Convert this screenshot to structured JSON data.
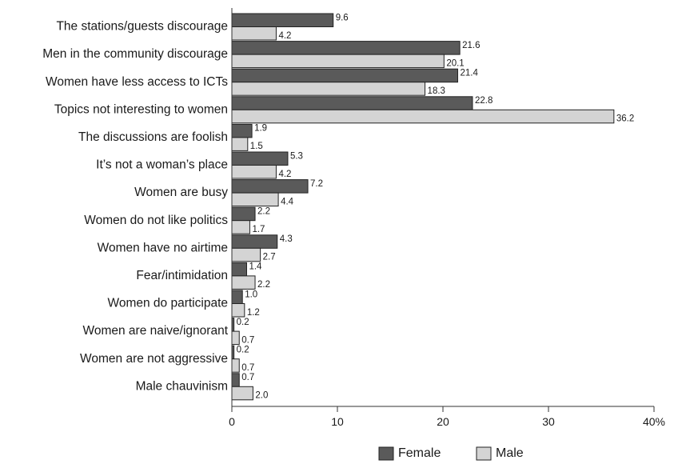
{
  "chart_data": {
    "type": "bar",
    "orientation": "horizontal",
    "categories": [
      "The stations/guests discourage",
      "Men in the community discourage",
      "Women have less access to ICTs",
      "Topics not interesting to women",
      "The discussions are foolish",
      "It’s not a woman’s place",
      "Women are busy",
      "Women do not like politics",
      "Women have no airtime",
      "Fear/intimidation",
      "Women do participate",
      "Women are naive/ignorant",
      "Women are not aggressive",
      "Male chauvinism"
    ],
    "series": [
      {
        "name": "Female",
        "color": "#5a5a5a",
        "values": [
          9.6,
          21.6,
          21.4,
          22.8,
          1.9,
          5.3,
          7.2,
          2.2,
          4.3,
          1.4,
          1.0,
          0.2,
          0.2,
          0.7
        ],
        "labels": [
          "9.6",
          "21.6",
          "21.4",
          "22.8",
          "1.9",
          "5.3",
          "7.2",
          "2.2",
          "4.3",
          "1.4",
          "1.0",
          "0.2",
          "0.2",
          "0.7"
        ]
      },
      {
        "name": "Male",
        "color": "#d4d4d4",
        "values": [
          4.2,
          20.1,
          18.3,
          36.2,
          1.5,
          4.2,
          4.4,
          1.7,
          2.7,
          2.2,
          1.2,
          0.7,
          0.7,
          2.0
        ],
        "labels": [
          "4.2",
          "20.1",
          "18.3",
          "36.2",
          "1.5",
          "4.2",
          "4.4",
          "1.7",
          "2.7",
          "2.2",
          "1.2",
          "0.7",
          "0.7",
          "2.0"
        ]
      }
    ],
    "xlim": [
      0,
      40
    ],
    "xticks": [
      0,
      10,
      20,
      30,
      40
    ],
    "xtick_labels": [
      "0",
      "10",
      "20",
      "30",
      "40%"
    ],
    "title": "",
    "xlabel": "",
    "ylabel": "",
    "grid": false,
    "legend_position": "bottom-right"
  }
}
